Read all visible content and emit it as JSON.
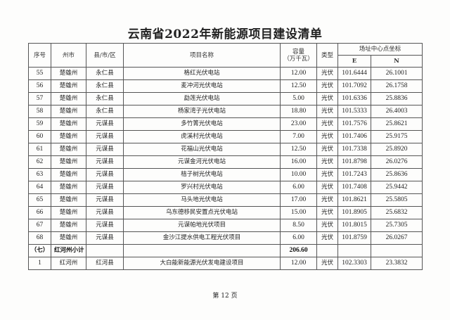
{
  "title": "云南省2022年新能源项目建设清单",
  "headers": {
    "seq": "序号",
    "prefecture": "州市",
    "county": "县/市/区",
    "project": "项目名称",
    "capacity": "容量",
    "capacity_unit": "（万千瓦）",
    "type": "类型",
    "coords": "场址中心点坐标",
    "e": "E",
    "n": "N"
  },
  "rows": [
    {
      "seq": "55",
      "pref": "楚雄州",
      "county": "永仁县",
      "name": "格红光伏电站",
      "cap": "12.00",
      "type": "光伏",
      "e": "101.6444",
      "n": "26.1001"
    },
    {
      "seq": "56",
      "pref": "楚雄州",
      "county": "永仁县",
      "name": "麦冲河光伏电站",
      "cap": "12.50",
      "type": "光伏",
      "e": "101.7092",
      "n": "26.1758"
    },
    {
      "seq": "57",
      "pref": "楚雄州",
      "county": "永仁县",
      "name": "勐莲光伏电站",
      "cap": "5.00",
      "type": "光伏",
      "e": "101.6336",
      "n": "25.8836"
    },
    {
      "seq": "58",
      "pref": "楚雄州",
      "county": "永仁县",
      "name": "杨家湾子光伏电站",
      "cap": "18.80",
      "type": "光伏",
      "e": "101.5333",
      "n": "26.4003"
    },
    {
      "seq": "59",
      "pref": "楚雄州",
      "county": "元谋县",
      "name": "多竹箐光伏电站",
      "cap": "23.00",
      "type": "光伏",
      "e": "101.7576",
      "n": "25.8621"
    },
    {
      "seq": "60",
      "pref": "楚雄州",
      "county": "元谋县",
      "name": "虎溪村光伏电站",
      "cap": "7.00",
      "type": "光伏",
      "e": "101.7406",
      "n": "25.9175"
    },
    {
      "seq": "61",
      "pref": "楚雄州",
      "county": "元谋县",
      "name": "花福山光伏电站",
      "cap": "12.50",
      "type": "光伏",
      "e": "101.7338",
      "n": "25.8920"
    },
    {
      "seq": "62",
      "pref": "楚雄州",
      "county": "元谋县",
      "name": "元谋金河光伏电站",
      "cap": "16.00",
      "type": "光伏",
      "e": "101.8798",
      "n": "26.0276"
    },
    {
      "seq": "63",
      "pref": "楚雄州",
      "county": "元谋县",
      "name": "桔子树光伏电站",
      "cap": "10.00",
      "type": "光伏",
      "e": "101.7243",
      "n": "25.8636"
    },
    {
      "seq": "64",
      "pref": "楚雄州",
      "county": "元谋县",
      "name": "罗兴村光伏电站",
      "cap": "6.00",
      "type": "光伏",
      "e": "101.7408",
      "n": "25.9442"
    },
    {
      "seq": "65",
      "pref": "楚雄州",
      "county": "元谋县",
      "name": "马头地光伏电站",
      "cap": "17.00",
      "type": "光伏",
      "e": "101.8621",
      "n": "25.5805"
    },
    {
      "seq": "66",
      "pref": "楚雄州",
      "county": "元谋县",
      "name": "乌东德移民安置点光伏电站",
      "cap": "15.00",
      "type": "光伏",
      "e": "101.8905",
      "n": "25.6832"
    },
    {
      "seq": "67",
      "pref": "楚雄州",
      "county": "元谋县",
      "name": "元谋帕地光伏项目",
      "cap": "8.50",
      "type": "光伏",
      "e": "101.8015",
      "n": "25.7305"
    },
    {
      "seq": "68",
      "pref": "楚雄州",
      "county": "元谋县",
      "name": "金沙江提水供电工程光伏项目",
      "cap": "6.00",
      "type": "光伏",
      "e": "101.8759",
      "n": "26.0267"
    }
  ],
  "subtotal": {
    "seq": "（七）",
    "label": "红河州小计",
    "cap": "206.60"
  },
  "last_row": {
    "seq": "1",
    "pref": "红河州",
    "county": "红河县",
    "name": "大白能新能源光伏发电建设项目",
    "cap": "12.00",
    "type": "光伏",
    "e": "102.3303",
    "n": "23.3832"
  },
  "footer": "第 12 页"
}
